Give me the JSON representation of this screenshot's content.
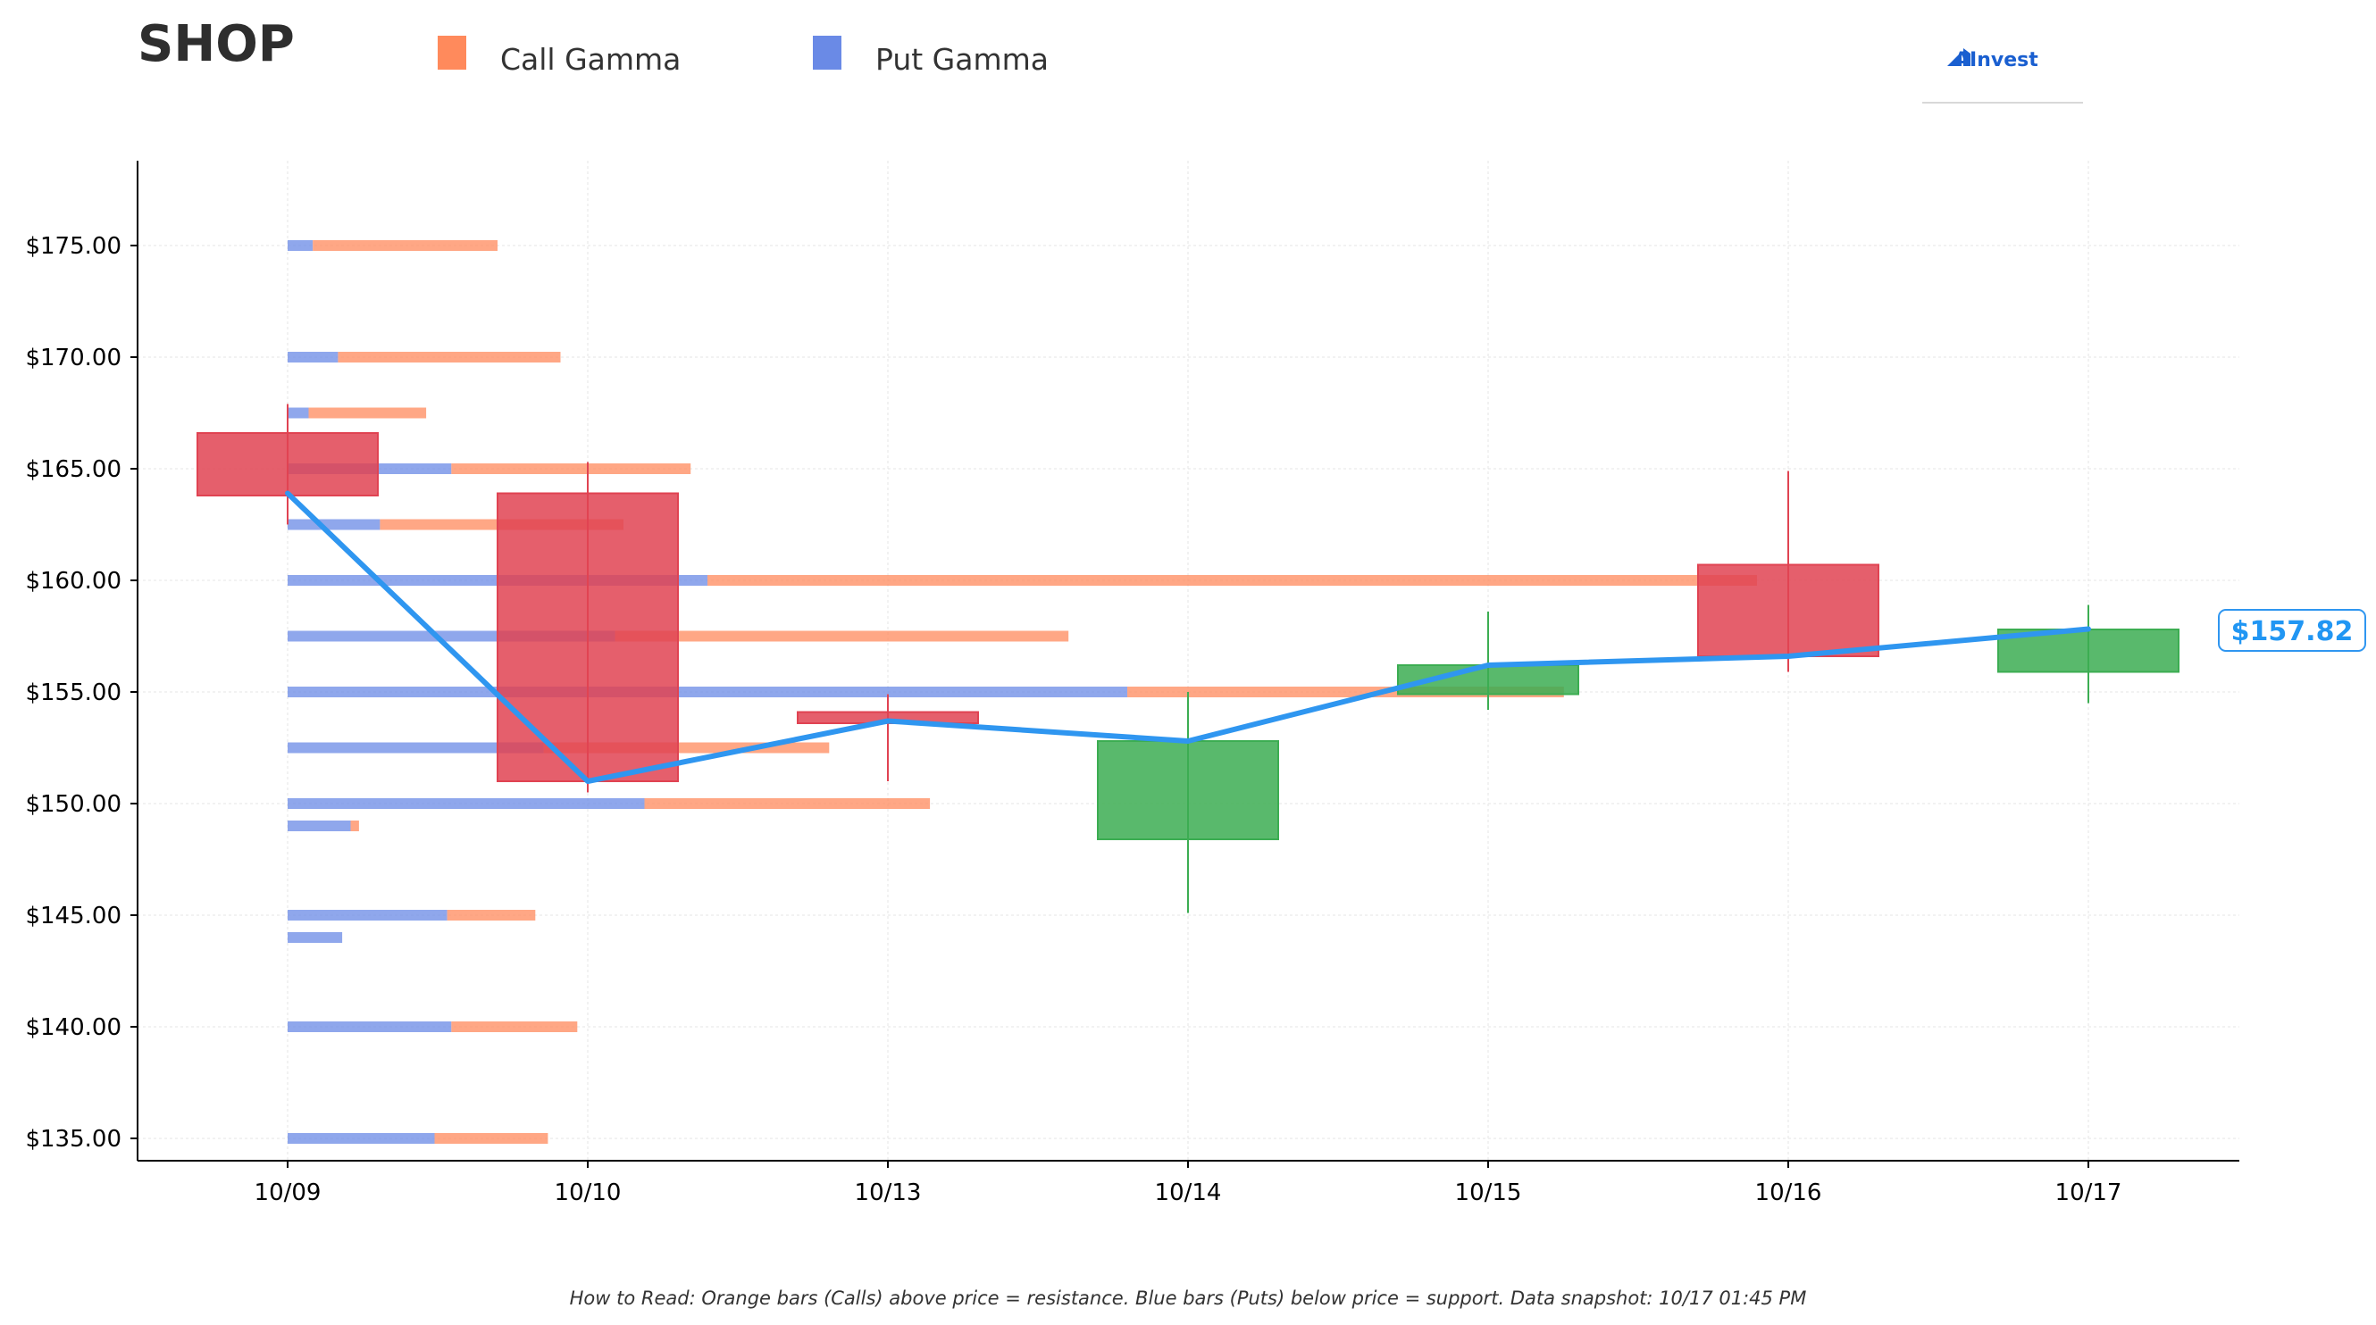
{
  "ticker": "SHOP",
  "legend": [
    {
      "label": "Call Gamma",
      "color": "#ff8a5c"
    },
    {
      "label": "Put Gamma",
      "color": "#6a8ae6"
    }
  ],
  "logo": {
    "text": "AInvest",
    "color": "#1a5fd0"
  },
  "footnote": "How to Read: Orange bars (Calls) above price = resistance. Blue bars (Puts) below price = support. Data snapshot: 10/17 01:45 PM",
  "current_price_label": "$157.82",
  "colors": {
    "call": "#ff8a5c",
    "put": "#6a8ae6",
    "up": "#3cad52",
    "down": "#e04352",
    "price_line": "#2f96f0",
    "axis": "#000000"
  },
  "chart_data": {
    "type": "candlestick",
    "categories": [
      "10/09",
      "10/10",
      "10/13",
      "10/14",
      "10/15",
      "10/16",
      "10/17"
    ],
    "ylim": [
      133,
      179
    ],
    "yticks": [
      135,
      140,
      145,
      150,
      155,
      160,
      165,
      170,
      175
    ],
    "ytick_labels": [
      "$135.00",
      "$140.00",
      "$145.00",
      "$150.00",
      "$155.00",
      "$160.00",
      "$165.00",
      "$170.00",
      "$175.00"
    ],
    "grid": true,
    "legend_position": "top",
    "candles": [
      {
        "date": "10/09",
        "open": 166.6,
        "high": 167.9,
        "low": 162.5,
        "close": 163.8
      },
      {
        "date": "10/10",
        "open": 163.9,
        "high": 165.3,
        "low": 150.5,
        "close": 151.0
      },
      {
        "date": "10/13",
        "open": 154.1,
        "high": 154.9,
        "low": 151.0,
        "close": 153.6
      },
      {
        "date": "10/14",
        "open": 148.4,
        "high": 155.0,
        "low": 145.1,
        "close": 152.8
      },
      {
        "date": "10/15",
        "open": 154.9,
        "high": 158.6,
        "low": 154.2,
        "close": 156.2
      },
      {
        "date": "10/16",
        "open": 160.7,
        "high": 164.9,
        "low": 155.9,
        "close": 156.6
      },
      {
        "date": "10/17",
        "open": 155.9,
        "high": 158.9,
        "low": 154.5,
        "close": 157.8
      }
    ],
    "price_line": {
      "x": [
        "10/09",
        "10/10",
        "10/13",
        "10/14",
        "10/15",
        "10/16",
        "10/17"
      ],
      "y": [
        163.9,
        151.0,
        153.7,
        152.8,
        156.2,
        156.6,
        157.82
      ]
    },
    "gamma_strikes": [
      {
        "strike": 175.0,
        "put": 0.06,
        "call": 0.44
      },
      {
        "strike": 170.0,
        "put": 0.12,
        "call": 0.53
      },
      {
        "strike": 167.5,
        "put": 0.05,
        "call": 0.28
      },
      {
        "strike": 165.0,
        "put": 0.39,
        "call": 0.57
      },
      {
        "strike": 162.5,
        "put": 0.22,
        "call": 0.58
      },
      {
        "strike": 160.0,
        "put": 1.0,
        "call": 2.5
      },
      {
        "strike": 157.5,
        "put": 0.78,
        "call": 1.08
      },
      {
        "strike": 155.0,
        "put": 2.0,
        "call": 1.04
      },
      {
        "strike": 152.5,
        "put": 0.61,
        "call": 0.68
      },
      {
        "strike": 150.0,
        "put": 0.85,
        "call": 0.68
      },
      {
        "strike": 149.0,
        "put": 0.15,
        "call": 0.02
      },
      {
        "strike": 145.0,
        "put": 0.38,
        "call": 0.21
      },
      {
        "strike": 144.0,
        "put": 0.13,
        "call": 0.0
      },
      {
        "strike": 140.0,
        "put": 0.39,
        "call": 0.3
      },
      {
        "strike": 135.0,
        "put": 0.35,
        "call": 0.27
      }
    ]
  }
}
